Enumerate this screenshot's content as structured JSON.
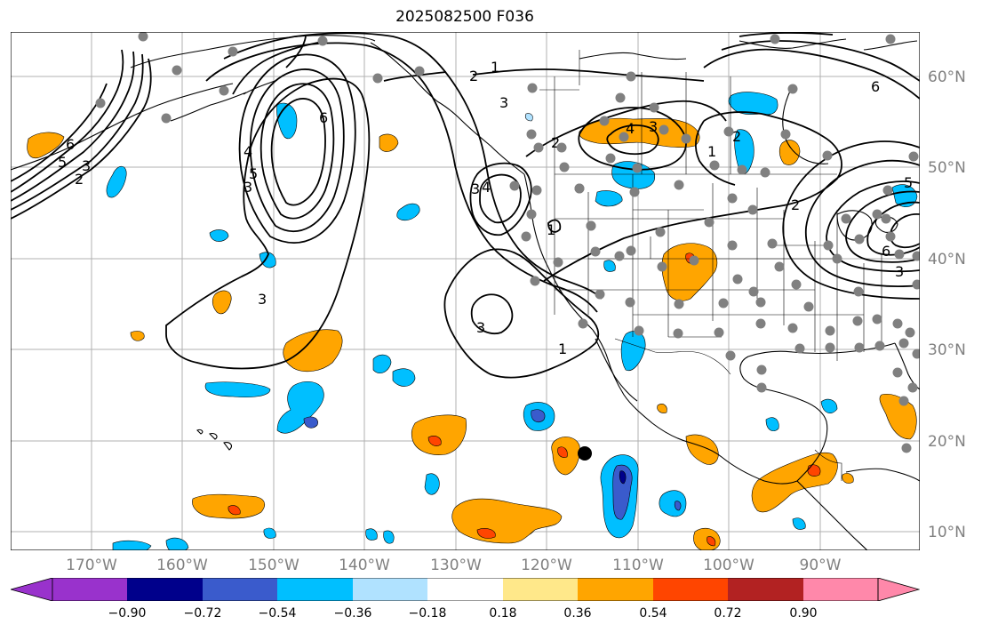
{
  "title": "2025082500 F036",
  "lon_labels": [
    "170°W",
    "160°W",
    "150°W",
    "140°W",
    "130°W",
    "120°W",
    "110°W",
    "100°W",
    "90°W"
  ],
  "lat_labels": [
    "60°N",
    "50°N",
    "40°N",
    "30°N",
    "20°N",
    "10°N"
  ],
  "colorbar": {
    "ticks": [
      "−0.90",
      "−0.72",
      "−0.54",
      "−0.36",
      "−0.18",
      "0.18",
      "0.36",
      "0.54",
      "0.72",
      "0.90"
    ],
    "colors": [
      "#9932cc",
      "#00008b",
      "#3a5bcc",
      "#00bfff",
      "#b0e2ff",
      "#ffffff",
      "#ffe88a",
      "#ffa500",
      "#ff4500",
      "#b22222",
      "#ff88aa"
    ]
  },
  "contour_labels": [
    "1",
    "2",
    "3",
    "4",
    "5",
    "6"
  ],
  "marker": "storm-center"
}
